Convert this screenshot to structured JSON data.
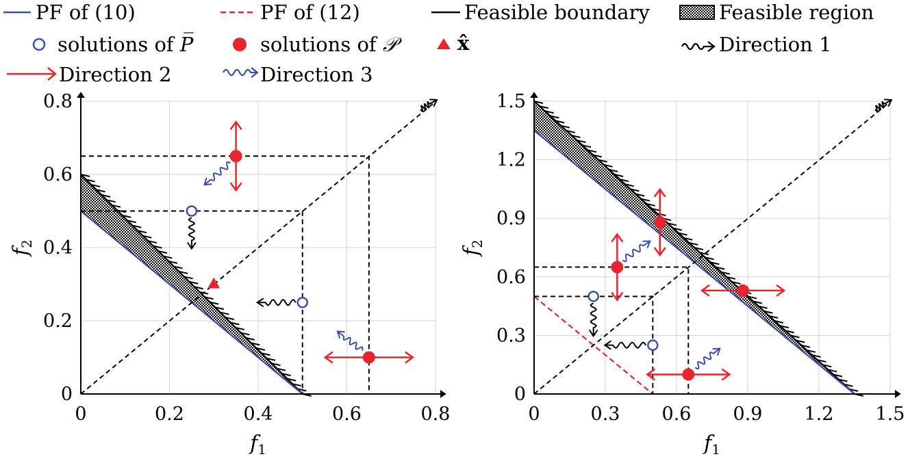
{
  "legend": {
    "pf10": "PF of (10)",
    "pf12": "PF of (12)",
    "feasible_boundary": "Feasible boundary",
    "feasible_region": "Feasible region",
    "sol_pbar": "solutions of",
    "sol_pbar_sym": "P̅",
    "sol_p": "solutions of",
    "sol_p_sym": "𝒫",
    "xhat": "x̂",
    "dir1": "Direction 1",
    "dir2": "Direction 2",
    "dir3": "Direction 3"
  },
  "colors": {
    "pf10": "#3b4ea8",
    "pf12": "#e8252f",
    "boundary": "#000000",
    "sol_pbar": "#3b4ea8",
    "sol_p": "#e8252f",
    "dir1": "#000000",
    "dir2": "#e8252f",
    "dir3": "#3b4ea8"
  },
  "chart_data": [
    {
      "type": "scatter",
      "xlabel": "f1",
      "ylabel": "f2",
      "xlim": [
        0,
        0.8
      ],
      "ylim": [
        0,
        0.8
      ],
      "xticks": [
        "0",
        "0.2",
        "0.4",
        "0.6",
        "0.8"
      ],
      "yticks": [
        "0",
        "0.2",
        "0.4",
        "0.6",
        "0.8"
      ],
      "grid": true,
      "pf10": [
        [
          0,
          0.5
        ],
        [
          0.5,
          0
        ]
      ],
      "pf12": [
        [
          0,
          0.5
        ],
        [
          0.5,
          0
        ]
      ],
      "feasible_boundary": [
        [
          0,
          0.6
        ],
        [
          0.5,
          0
        ]
      ],
      "feasible_region": [
        [
          0,
          0.5
        ],
        [
          0,
          0.6
        ],
        [
          0.5,
          0
        ],
        [
          0.5,
          0
        ]
      ],
      "solutions_pbar": [
        [
          0.25,
          0.5
        ],
        [
          0.5,
          0.25
        ]
      ],
      "solutions_p": [
        [
          0.35,
          0.65
        ],
        [
          0.65,
          0.1
        ]
      ],
      "xhat": [
        [
          0.3,
          0.3
        ]
      ]
    },
    {
      "type": "scatter",
      "xlabel": "f1",
      "ylabel": "f2",
      "xlim": [
        0,
        1.5
      ],
      "ylim": [
        0,
        1.5
      ],
      "xticks": [
        "0",
        "0.3",
        "0.6",
        "0.9",
        "1.2",
        "1.5"
      ],
      "yticks": [
        "0",
        "0.3",
        "0.6",
        "0.9",
        "1.2",
        "1.5"
      ],
      "grid": true,
      "pf10": [
        [
          0,
          1.35
        ],
        [
          1.35,
          0
        ]
      ],
      "pf12": [
        [
          0,
          0.5
        ],
        [
          0.5,
          0
        ]
      ],
      "feasible_boundary": [
        [
          0,
          1.5
        ],
        [
          1.35,
          0
        ]
      ],
      "feasible_region": [
        [
          0,
          1.35
        ],
        [
          0,
          1.5
        ],
        [
          1.35,
          0
        ]
      ],
      "solutions_pbar": [
        [
          0.25,
          0.5
        ],
        [
          0.5,
          0.25
        ]
      ],
      "solutions_p": [
        [
          0.35,
          0.65
        ],
        [
          0.53,
          0.88
        ],
        [
          0.65,
          0.1
        ],
        [
          0.88,
          0.53
        ]
      ]
    }
  ]
}
